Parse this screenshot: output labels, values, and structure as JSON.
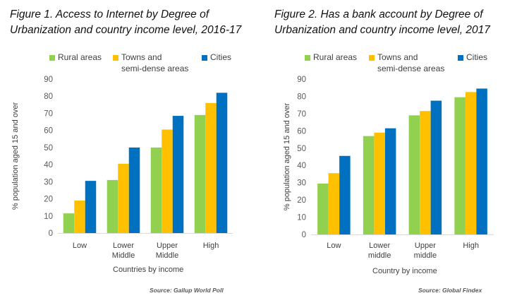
{
  "chart_data": [
    {
      "type": "bar",
      "title_lines": [
        "Figure 1. Access to Internet by Degree of",
        "Urbanization and country income level, 2016-17"
      ],
      "xlabel": "Countries by income",
      "ylabel": "% population aged 15 and over",
      "ylim": [
        0,
        90
      ],
      "yticks": [
        0,
        10,
        20,
        30,
        40,
        50,
        60,
        70,
        80,
        90
      ],
      "grid": false,
      "legend_position": "top",
      "categories": [
        [
          "Low"
        ],
        [
          "Lower",
          "Middle"
        ],
        [
          "Upper",
          "Middle"
        ],
        [
          "High"
        ]
      ],
      "series": [
        {
          "name_lines": [
            "Rural areas"
          ],
          "color": "#92D050",
          "values": [
            11.5,
            31,
            50,
            69
          ]
        },
        {
          "name_lines": [
            "Towns and",
            "semi-dense areas"
          ],
          "color": "#FFC000",
          "values": [
            19,
            40.5,
            60.5,
            76
          ]
        },
        {
          "name_lines": [
            "Cities"
          ],
          "color": "#0070C0",
          "values": [
            30.5,
            50,
            68.5,
            82
          ]
        }
      ],
      "source": "Source: Gallup World Poll"
    },
    {
      "type": "bar",
      "title_lines": [
        "Figure 2. Has a bank account by Degree of",
        "Urbanization and country income level, 2017"
      ],
      "xlabel": "Country by income",
      "ylabel": "% population aged 15 and over",
      "ylim": [
        0,
        90
      ],
      "yticks": [
        0,
        10,
        20,
        30,
        40,
        50,
        60,
        70,
        80,
        90
      ],
      "grid": false,
      "legend_position": "top",
      "categories": [
        [
          "Low"
        ],
        [
          "Lower",
          "middle"
        ],
        [
          "Upper",
          "middle"
        ],
        [
          "High"
        ]
      ],
      "series": [
        {
          "name_lines": [
            "Rural areas"
          ],
          "color": "#92D050",
          "values": [
            29.5,
            57,
            69,
            79.5
          ]
        },
        {
          "name_lines": [
            "Towns and",
            "semi-dense areas"
          ],
          "color": "#FFC000",
          "values": [
            35.5,
            59,
            71.5,
            82.5
          ]
        },
        {
          "name_lines": [
            "Cities"
          ],
          "color": "#0070C0",
          "values": [
            45.5,
            61.5,
            77.5,
            84.5
          ]
        }
      ],
      "source": "Source: Global Findex"
    }
  ]
}
